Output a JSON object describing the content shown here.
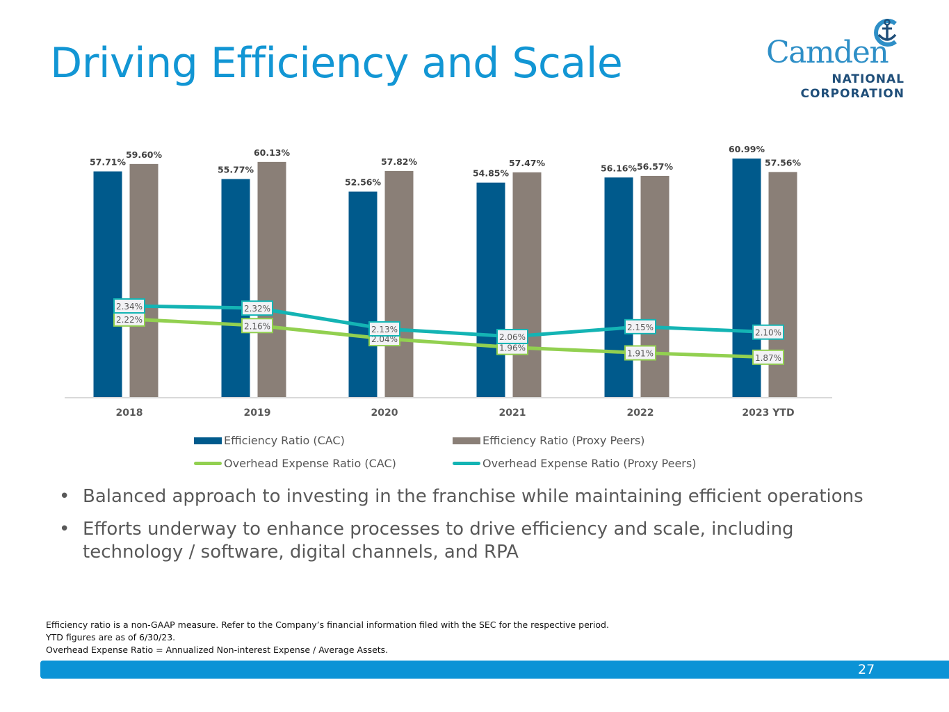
{
  "slide": {
    "title": "Driving Efficiency and Scale",
    "page_number": "27",
    "logo": {
      "name": "Camden",
      "line2": "NATIONAL",
      "line3": "CORPORATION",
      "icon": "anchor-icon"
    },
    "bullets": [
      "Balanced approach to investing in the franchise while maintaining efficient operations",
      "Efforts underway to enhance processes to drive efficiency and scale, including technology / software, digital channels, and RPA"
    ],
    "bullet_glyph": "•",
    "notes": [
      "Efficiency ratio is a non-GAAP measure. Refer to the Company’s financial information filed with the SEC for the respective period.",
      "YTD figures are as of 6/30/23.",
      "Overhead Expense Ratio = Annualized Non-interest Expense / Average Assets."
    ],
    "colors": {
      "title": "#1296d4",
      "footer_bar": "#0b93d6",
      "cac_bar": "#005a8c",
      "peer_bar": "#8a7f77",
      "cac_line": "#92d050",
      "peer_line": "#14b4b4"
    }
  },
  "chart_data": {
    "type": "bar",
    "title": "",
    "xlabel": "",
    "ylabel": "",
    "categories": [
      "2018",
      "2019",
      "2020",
      "2021",
      "2022",
      "2023 YTD"
    ],
    "series": [
      {
        "name": "Efficiency Ratio (CAC)",
        "kind": "bar",
        "color": "#005a8c",
        "values": [
          57.71,
          55.77,
          52.56,
          54.85,
          56.16,
          60.99
        ],
        "labels": [
          "57.71%",
          "55.77%",
          "52.56%",
          "54.85%",
          "56.16%",
          "60.99%"
        ]
      },
      {
        "name": "Efficiency Ratio (Proxy Peers)",
        "kind": "bar",
        "color": "#8a7f77",
        "values": [
          59.6,
          60.13,
          57.82,
          57.47,
          56.57,
          57.56
        ],
        "labels": [
          "59.60%",
          "60.13%",
          "57.82%",
          "57.47%",
          "56.57%",
          "57.56%"
        ]
      },
      {
        "name": "Overhead Expense Ratio (CAC)",
        "kind": "line",
        "color": "#92d050",
        "values": [
          2.22,
          2.16,
          2.04,
          1.96,
          1.91,
          1.87
        ],
        "labels": [
          "2.22%",
          "2.16%",
          "2.04%",
          "1.96%",
          "1.91%",
          "1.87%"
        ]
      },
      {
        "name": "Overhead Expense Ratio (Proxy Peers)",
        "kind": "line",
        "color": "#14b4b4",
        "values": [
          2.34,
          2.32,
          2.13,
          2.06,
          2.15,
          2.1
        ],
        "labels": [
          "2.34%",
          "2.32%",
          "2.13%",
          "2.06%",
          "2.15%",
          "2.10%"
        ]
      }
    ],
    "ylim_bars": [
      0,
      65
    ],
    "grid": false,
    "legend_position": "bottom"
  }
}
